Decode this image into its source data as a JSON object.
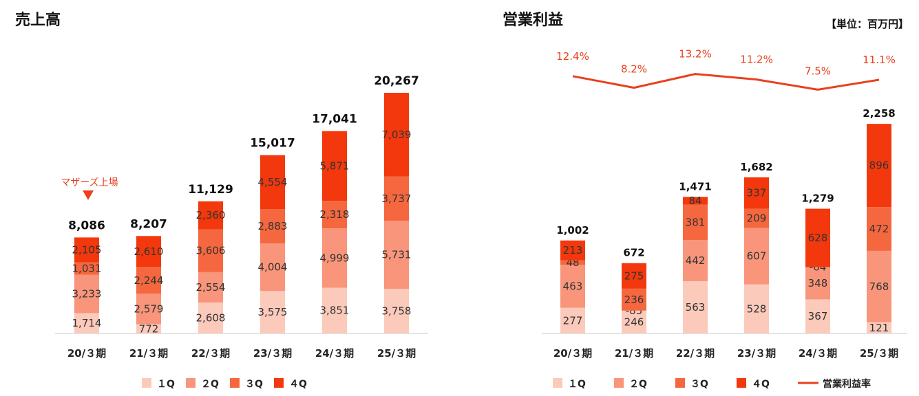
{
  "colors": {
    "q1": "#fbcaba",
    "q2": "#f8957a",
    "q3": "#f5673f",
    "q4": "#f2380c",
    "margin_line": "#e8401e"
  },
  "unit_label": "【単位：百万円】",
  "chart_data": [
    {
      "type": "bar",
      "stacked": true,
      "title": "売上高",
      "categories": [
        "20/３期",
        "21/３期",
        "22/３期",
        "23/３期",
        "24/３期",
        "25/３期"
      ],
      "series": [
        {
          "name": "１Q",
          "values": [
            1714,
            772,
            2608,
            3575,
            3851,
            3758
          ]
        },
        {
          "name": "２Q",
          "values": [
            3233,
            2579,
            2554,
            4004,
            4999,
            5731
          ]
        },
        {
          "name": "３Q",
          "values": [
            1031,
            2244,
            3606,
            2883,
            2318,
            3737
          ]
        },
        {
          "name": "４Q",
          "values": [
            2105,
            2610,
            2360,
            4554,
            5871,
            7039
          ]
        }
      ],
      "totals": [
        "8,086",
        "8,207",
        "11,129",
        "15,017",
        "17,041",
        "20,267"
      ],
      "annotation": "マザーズ上場",
      "legend_position": "bottom",
      "grid": false
    },
    {
      "type": "bar",
      "stacked": true,
      "title": "営業利益",
      "categories": [
        "20/３期",
        "21/３期",
        "22/３期",
        "23/３期",
        "24/３期",
        "25/３期"
      ],
      "series": [
        {
          "name": "１Q",
          "values": [
            277,
            246,
            563,
            528,
            367,
            121
          ]
        },
        {
          "name": "２Q",
          "values": [
            463,
            -85,
            442,
            607,
            348,
            768
          ]
        },
        {
          "name": "３Q",
          "values": [
            48,
            236,
            381,
            209,
            -64,
            472
          ]
        },
        {
          "name": "４Q",
          "values": [
            213,
            275,
            84,
            337,
            628,
            896
          ]
        }
      ],
      "totals": [
        "1,002",
        "672",
        "1,471",
        "1,682",
        "1,279",
        "2,258"
      ],
      "line_series": {
        "name": "営業利益率",
        "values": [
          12.4,
          8.2,
          13.2,
          11.2,
          7.5,
          11.1
        ],
        "labels": [
          "12.4%",
          "8.2%",
          "13.2%",
          "11.2%",
          "7.5%",
          "11.1%"
        ]
      },
      "legend_position": "bottom",
      "grid": false
    }
  ]
}
